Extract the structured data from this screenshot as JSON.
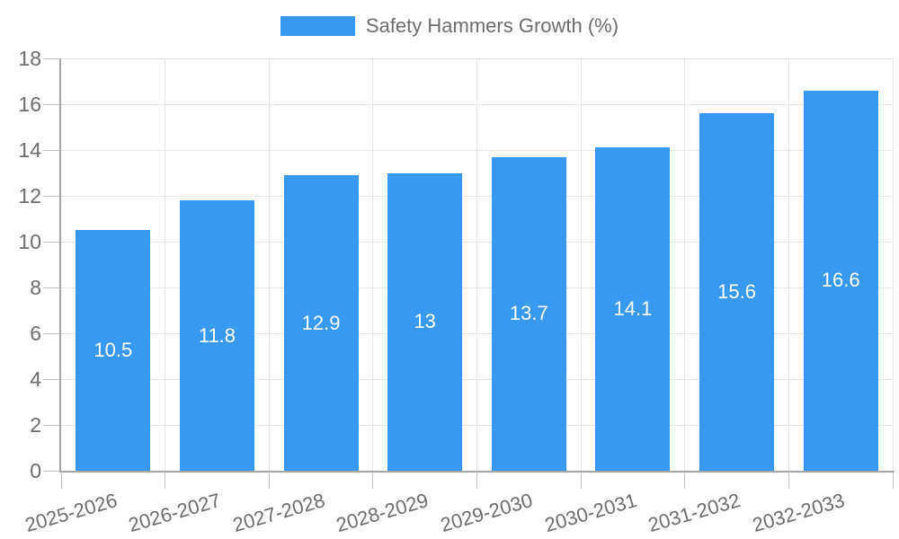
{
  "chart_data": {
    "type": "bar",
    "title": "Safety Hammers Growth (%)",
    "categories": [
      "2025-2026",
      "2026-2027",
      "2027-2028",
      "2028-2029",
      "2029-2030",
      "2030-2031",
      "2031-2032",
      "2032-2033"
    ],
    "values": [
      10.5,
      11.8,
      12.9,
      13,
      13.7,
      14.1,
      15.6,
      16.6
    ],
    "value_labels": [
      "10.5",
      "11.8",
      "12.9",
      "13",
      "13.7",
      "14.1",
      "15.6",
      "16.6"
    ],
    "xlabel": "",
    "ylabel": "",
    "ylim": [
      0,
      18
    ],
    "yticks": [
      0,
      2,
      4,
      6,
      8,
      10,
      12,
      14,
      16,
      18
    ],
    "grid": true,
    "legend_position": "top",
    "x_label_rotation_deg": -16,
    "colors": {
      "bar": "#3899f0",
      "value_label": "#ffffff",
      "tick_text": "#6e6e6e",
      "gridline": "#e7e7e7",
      "axis": "#a6a6a6",
      "background": "#ffffff"
    }
  }
}
